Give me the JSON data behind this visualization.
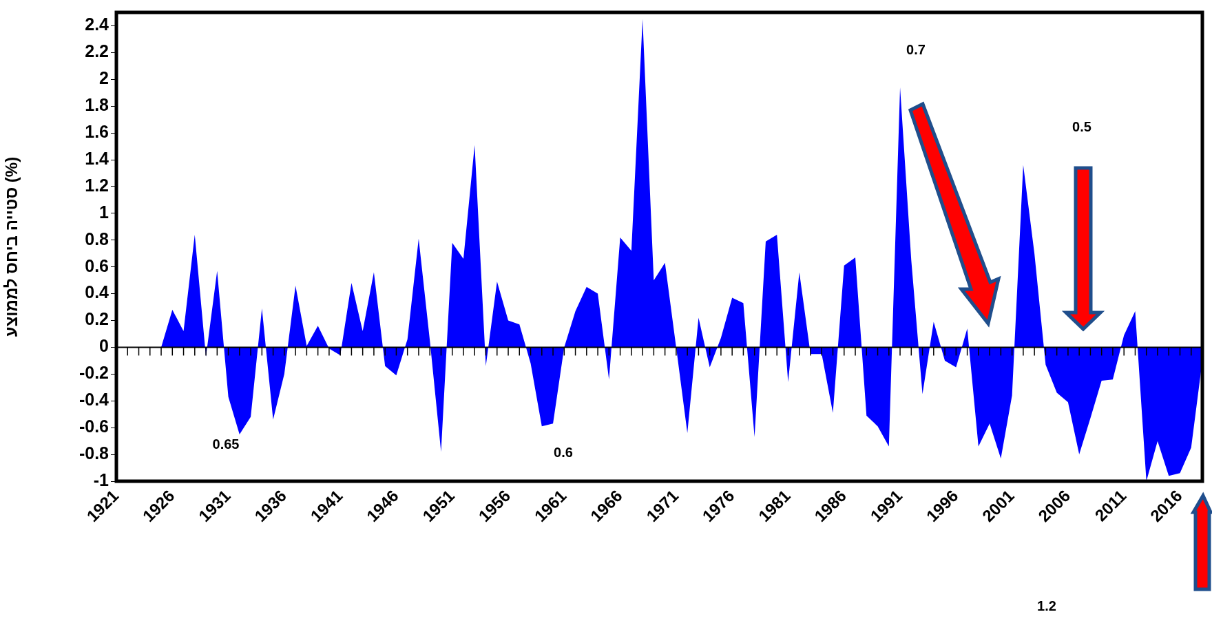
{
  "chart_data": {
    "type": "area",
    "ylabel": "סטייה ביחס לממוצע (%)",
    "x": [
      1925,
      1926,
      1927,
      1928,
      1929,
      1930,
      1931,
      1932,
      1933,
      1934,
      1935,
      1936,
      1937,
      1938,
      1939,
      1940,
      1941,
      1942,
      1943,
      1944,
      1945,
      1946,
      1947,
      1948,
      1949,
      1950,
      1951,
      1952,
      1953,
      1954,
      1955,
      1956,
      1957,
      1958,
      1959,
      1960,
      1961,
      1962,
      1963,
      1964,
      1965,
      1966,
      1967,
      1968,
      1969,
      1970,
      1971,
      1972,
      1973,
      1974,
      1975,
      1976,
      1977,
      1978,
      1979,
      1980,
      1981,
      1982,
      1983,
      1984,
      1985,
      1986,
      1987,
      1988,
      1989,
      1990,
      1991,
      1992,
      1993,
      1994,
      1995,
      1996,
      1997,
      1998,
      1999,
      2000,
      2001,
      2002,
      2003,
      2004,
      2005,
      2006,
      2007,
      2008,
      2009,
      2010,
      2011,
      2012,
      2013,
      2014,
      2015,
      2016,
      2017,
      2018
    ],
    "series": [
      {
        "color": "#0000ff",
        "values": [
          0,
          0.28,
          0.12,
          0.84,
          -0.07,
          0.57,
          -0.37,
          -0.65,
          -0.52,
          0.29,
          -0.54,
          -0.2,
          0.46,
          0.01,
          0.16,
          -0.01,
          -0.06,
          0.48,
          0.12,
          0.56,
          -0.14,
          -0.21,
          0.06,
          0.81,
          0.05,
          -0.78,
          0.78,
          0.66,
          1.51,
          -0.14,
          0.49,
          0.2,
          0.17,
          -0.12,
          -0.59,
          -0.57,
          0,
          0.27,
          0.45,
          0.4,
          -0.24,
          0.82,
          0.72,
          2.45,
          0.5,
          0.63,
          0,
          -0.64,
          0.22,
          -0.15,
          0.07,
          0.37,
          0.33,
          -0.67,
          0.79,
          0.84,
          -0.26,
          0.56,
          -0.05,
          -0.05,
          -0.49,
          0.61,
          0.67,
          -0.51,
          -0.59,
          -0.74,
          1.94,
          0.65,
          -0.35,
          0.19,
          -0.1,
          -0.15,
          0.14,
          -0.74,
          -0.57,
          -0.83,
          -0.36,
          1.36,
          0.7,
          -0.13,
          -0.34,
          -0.41,
          -0.8,
          -0.53,
          -0.25,
          -0.24,
          0.09,
          0.27,
          -1.0,
          -0.7,
          -0.96,
          -0.94,
          -0.75,
          -0.1
        ]
      }
    ],
    "xlim": [
      1921,
      2018
    ],
    "xticks": [
      1921,
      {
        "value": 1922,
        "label": null
      },
      {
        "value": 1923,
        "label": null
      },
      {
        "value": 1924,
        "label": null
      },
      {
        "value": 1925,
        "label": null
      },
      1926,
      {
        "value": 1927,
        "label": null
      },
      {
        "value": 1928,
        "label": null
      },
      {
        "value": 1929,
        "label": null
      },
      {
        "value": 1930,
        "label": null
      },
      1931,
      {
        "value": 1932,
        "label": null
      },
      {
        "value": 1933,
        "label": null
      },
      {
        "value": 1934,
        "label": null
      },
      {
        "value": 1935,
        "label": null
      },
      1936,
      {
        "value": 1937,
        "label": null
      },
      {
        "value": 1938,
        "label": null
      },
      {
        "value": 1939,
        "label": null
      },
      {
        "value": 1940,
        "label": null
      },
      1941,
      {
        "value": 1942,
        "label": null
      },
      {
        "value": 1943,
        "label": null
      },
      {
        "value": 1944,
        "label": null
      },
      {
        "value": 1945,
        "label": null
      },
      1946,
      {
        "value": 1947,
        "label": null
      },
      {
        "value": 1948,
        "label": null
      },
      {
        "value": 1949,
        "label": null
      },
      {
        "value": 1950,
        "label": null
      },
      1951,
      {
        "value": 1952,
        "label": null
      },
      {
        "value": 1953,
        "label": null
      },
      {
        "value": 1954,
        "label": null
      },
      {
        "value": 1955,
        "label": null
      },
      1956,
      {
        "value": 1957,
        "label": null
      },
      {
        "value": 1958,
        "label": null
      },
      {
        "value": 1959,
        "label": null
      },
      {
        "value": 1960,
        "label": null
      },
      1961,
      {
        "value": 1962,
        "label": null
      },
      {
        "value": 1963,
        "label": null
      },
      {
        "value": 1964,
        "label": null
      },
      {
        "value": 1965,
        "label": null
      },
      1966,
      {
        "value": 1967,
        "label": null
      },
      {
        "value": 1968,
        "label": null
      },
      {
        "value": 1969,
        "label": null
      },
      {
        "value": 1970,
        "label": null
      },
      1971,
      {
        "value": 1972,
        "label": null
      },
      {
        "value": 1973,
        "label": null
      },
      {
        "value": 1974,
        "label": null
      },
      {
        "value": 1975,
        "label": null
      },
      1976,
      {
        "value": 1977,
        "label": null
      },
      {
        "value": 1978,
        "label": null
      },
      {
        "value": 1979,
        "label": null
      },
      {
        "value": 1980,
        "label": null
      },
      1981,
      {
        "value": 1982,
        "label": null
      },
      {
        "value": 1983,
        "label": null
      },
      {
        "value": 1984,
        "label": null
      },
      {
        "value": 1985,
        "label": null
      },
      1986,
      {
        "value": 1987,
        "label": null
      },
      {
        "value": 1988,
        "label": null
      },
      {
        "value": 1989,
        "label": null
      },
      {
        "value": 1990,
        "label": null
      },
      1991,
      {
        "value": 1992,
        "label": null
      },
      {
        "value": 1993,
        "label": null
      },
      {
        "value": 1994,
        "label": null
      },
      {
        "value": 1995,
        "label": null
      },
      1996,
      {
        "value": 1997,
        "label": null
      },
      {
        "value": 1998,
        "label": null
      },
      {
        "value": 1999,
        "label": null
      },
      {
        "value": 2000,
        "label": null
      },
      2001,
      {
        "value": 2002,
        "label": null
      },
      {
        "value": 2003,
        "label": null
      },
      {
        "value": 2004,
        "label": null
      },
      {
        "value": 2005,
        "label": null
      },
      2006,
      {
        "value": 2007,
        "label": null
      },
      {
        "value": 2008,
        "label": null
      },
      {
        "value": 2009,
        "label": null
      },
      {
        "value": 2010,
        "label": null
      },
      2011,
      {
        "value": 2012,
        "label": null
      },
      {
        "value": 2013,
        "label": null
      },
      {
        "value": 2014,
        "label": null
      },
      {
        "value": 2015,
        "label": null
      },
      2016,
      {
        "value": 2017,
        "label": null
      }
    ],
    "ylim": [
      -1,
      2.5
    ],
    "yticks": [
      -1,
      -0.8,
      -0.6,
      -0.4,
      -0.2,
      0,
      0.2,
      0.4,
      0.6,
      0.8,
      1,
      1.2,
      1.4,
      1.6,
      1.8,
      2,
      2.2,
      2.4
    ],
    "annotations": [
      "0.65",
      "0.6",
      "0.7",
      "0.5",
      "1.2"
    ]
  }
}
